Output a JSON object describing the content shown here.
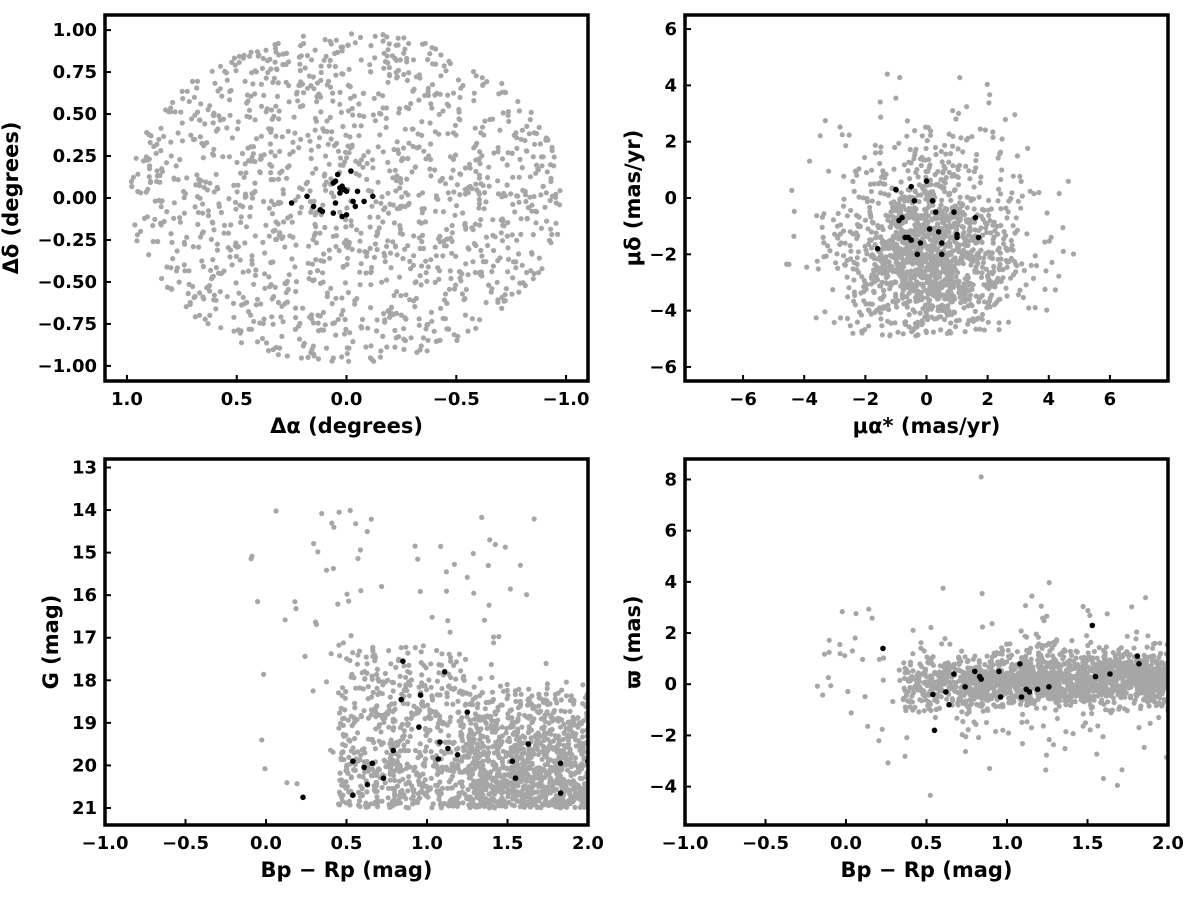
{
  "colors": {
    "field": "#a6a6a6",
    "member": "#000000",
    "axis": "#000000",
    "background": "#ffffff"
  },
  "chart_data": [
    {
      "id": "sky",
      "type": "scatter",
      "xlabel": "Δα (degrees)",
      "ylabel": "Δδ (degrees)",
      "xlim": [
        1.1,
        -1.1
      ],
      "ylim": [
        -1.09,
        1.09
      ],
      "x_reversed": true,
      "xticks": [
        1.0,
        0.5,
        0.0,
        -0.5,
        -1.0
      ],
      "xtick_labels": [
        "1.0",
        "0.5",
        "0.0",
        "−0.5",
        "−1.0"
      ],
      "yticks": [
        -1.0,
        -0.75,
        -0.5,
        -0.25,
        0.0,
        0.25,
        0.5,
        0.75,
        1.0
      ],
      "ytick_labels": [
        "−1.00",
        "−0.75",
        "−0.50",
        "−0.25",
        "0.00",
        "0.25",
        "0.50",
        "0.75",
        "1.00"
      ],
      "members": {
        "x": [
          0.25,
          0.18,
          0.15,
          0.12,
          0.11,
          0.06,
          0.05,
          0.04,
          0.03,
          0.03,
          0.02,
          0.01,
          0.0,
          0.0,
          -0.02,
          -0.03,
          -0.05,
          -0.08,
          -0.12,
          0.05,
          -0.04,
          0.02,
          0.06
        ],
        "y": [
          -0.03,
          0.01,
          -0.05,
          -0.07,
          -0.08,
          -0.09,
          0.1,
          0.14,
          0.06,
          0.03,
          0.07,
          0.05,
          0.04,
          -0.1,
          0.16,
          -0.02,
          0.04,
          -0.02,
          0.01,
          -0.03,
          -0.05,
          -0.11,
          0.09
        ]
      },
      "field": {
        "count": 1400,
        "shape": "disk",
        "center": [
          0,
          0
        ],
        "radius_x": 1.0,
        "radius_y": 1.0,
        "description": "field stars filling the circular area"
      }
    },
    {
      "id": "proper-motion",
      "type": "scatter",
      "xlabel": "μα* (mas/yr)",
      "ylabel": "μδ (mas/yr)",
      "xlim": [
        -7.9,
        7.9
      ],
      "ylim": [
        -6.5,
        6.5
      ],
      "xticks": [
        -6,
        -4,
        -2,
        0,
        2,
        4,
        6
      ],
      "xtick_labels": [
        "−6",
        "−4",
        "−2",
        "0",
        "2",
        "4",
        "6"
      ],
      "yticks": [
        -6,
        -4,
        -2,
        0,
        2,
        4,
        6
      ],
      "ytick_labels": [
        "−6",
        "−4",
        "−2",
        "0",
        "2",
        "4",
        "6"
      ],
      "members": {
        "x": [
          -1.6,
          -1.0,
          -0.9,
          -0.8,
          -0.7,
          -0.6,
          -0.5,
          -0.5,
          -0.4,
          -0.3,
          -0.2,
          0.0,
          0.1,
          0.2,
          0.4,
          0.5,
          0.5,
          0.9,
          1.0,
          1.0,
          1.6,
          1.7,
          0.3
        ],
        "y": [
          -1.8,
          0.3,
          -0.8,
          -0.7,
          -1.4,
          -1.4,
          -1.5,
          0.4,
          -0.1,
          -2.0,
          -1.6,
          0.6,
          -1.1,
          -0.1,
          -1.2,
          -1.6,
          -2.0,
          -0.5,
          -1.3,
          -1.4,
          -0.7,
          -1.4,
          -0.5
        ]
      },
      "field": {
        "count": 1500,
        "description": "field stars clustered around (0,-2), truncated below -5 and spread out to ±5"
      }
    },
    {
      "id": "cmd",
      "type": "scatter",
      "xlabel": "Bp − Rp (mag)",
      "ylabel": "G (mag)",
      "xlim": [
        -1.0,
        2.0
      ],
      "ylim": [
        21.4,
        12.8
      ],
      "y_reversed": true,
      "xticks": [
        -1.0,
        -0.5,
        0.0,
        0.5,
        1.0,
        1.5,
        2.0
      ],
      "xtick_labels": [
        "−1.0",
        "−0.5",
        "0.0",
        "0.5",
        "1.0",
        "1.5",
        "2.0"
      ],
      "yticks": [
        13,
        14,
        15,
        16,
        17,
        18,
        19,
        20,
        21
      ],
      "ytick_labels": [
        "13",
        "14",
        "15",
        "16",
        "17",
        "18",
        "19",
        "20",
        "21"
      ],
      "members": {
        "x": [
          0.23,
          0.54,
          0.54,
          0.61,
          0.63,
          0.66,
          0.73,
          0.79,
          0.84,
          0.85,
          0.95,
          0.96,
          1.07,
          1.08,
          1.11,
          1.13,
          1.19,
          1.25,
          1.53,
          1.55,
          1.63,
          1.83,
          1.83,
          2.0
        ],
        "y": [
          20.75,
          20.7,
          19.9,
          20.05,
          20.45,
          19.95,
          20.3,
          19.65,
          18.45,
          17.55,
          19.1,
          18.35,
          19.85,
          19.45,
          17.8,
          19.6,
          19.75,
          18.75,
          19.9,
          20.3,
          19.5,
          20.65,
          19.95,
          19.9
        ]
      },
      "field": {
        "count": 1800,
        "description": "field stars forming a wedge between Bp-Rp 0.3 and 2.0 at G 17 to 21, with scattered bright stars"
      }
    },
    {
      "id": "parallax",
      "type": "scatter",
      "xlabel": "Bp − Rp (mag)",
      "ylabel": "ϖ (mas)",
      "xlim": [
        -1.0,
        2.0
      ],
      "ylim": [
        -5.5,
        8.8
      ],
      "xticks": [
        -1.0,
        -0.5,
        0.0,
        0.5,
        1.0,
        1.5,
        2.0
      ],
      "xtick_labels": [
        "−1.0",
        "−0.5",
        "0.0",
        "0.5",
        "1.0",
        "1.5",
        "2.0"
      ],
      "yticks": [
        -4,
        -2,
        0,
        2,
        4,
        6,
        8
      ],
      "ytick_labels": [
        "−4",
        "−2",
        "0",
        "2",
        "4",
        "6",
        "8"
      ],
      "members": {
        "x": [
          0.23,
          0.54,
          0.55,
          0.62,
          0.64,
          0.67,
          0.74,
          0.8,
          0.83,
          0.84,
          0.95,
          0.96,
          1.08,
          1.09,
          1.12,
          1.14,
          1.19,
          1.26,
          1.53,
          1.55,
          1.64,
          1.81,
          1.82
        ],
        "y": [
          1.4,
          -0.4,
          -1.8,
          -0.3,
          -0.8,
          0.4,
          -0.1,
          0.5,
          0.3,
          0.2,
          0.5,
          -0.5,
          0.8,
          -0.5,
          -0.2,
          -0.3,
          -0.2,
          -0.1,
          2.3,
          0.3,
          0.4,
          1.1,
          0.8
        ]
      },
      "field": {
        "count": 1800,
        "description": "field stars in a band around parallax 0 from Bp-Rp 0.3 to 2.0, with sparse outliers"
      }
    }
  ]
}
